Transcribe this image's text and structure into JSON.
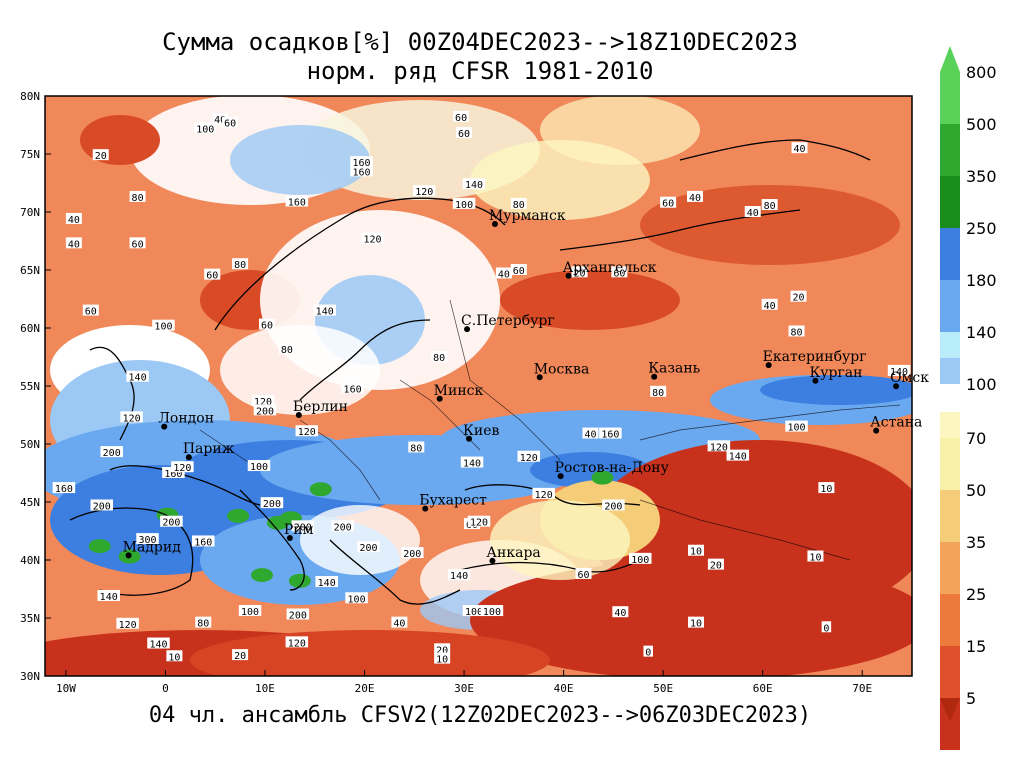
{
  "title_line1": "Сумма осадков[%] 00Z04DEC2023-->18Z10DEC2023",
  "title_line2": "норм. ряд CFSR 1981-2010",
  "footer": "04 чл. ансамбль CFSV2(12Z02DEC2023-->06Z03DEC2023)",
  "lat_labels": [
    "80N",
    "75N",
    "70N",
    "65N",
    "60N",
    "55N",
    "50N",
    "45N",
    "40N",
    "35N",
    "30N"
  ],
  "lon_labels": [
    "10W",
    "0",
    "10E",
    "20E",
    "30E",
    "40E",
    "50E",
    "60E",
    "70E"
  ],
  "colorbar": {
    "upper": [
      {
        "label": "800",
        "color": "#5ad25a"
      },
      {
        "label": "500",
        "color": "#2ea82e"
      },
      {
        "label": "350",
        "color": "#1a8c1a"
      },
      {
        "label": "250",
        "color": "#3c7fe0"
      },
      {
        "label": "180",
        "color": "#6aa8f0"
      },
      {
        "label": "140",
        "color": "#9cc8f5"
      }
    ],
    "upper_bottom_color": "#b8ecf8",
    "mid_label": "100",
    "lower": [
      {
        "label": "70",
        "color": "#f7f0a8"
      },
      {
        "label": "50",
        "color": "#f5cc78"
      },
      {
        "label": "35",
        "color": "#f2a45a"
      },
      {
        "label": "25",
        "color": "#ec7a3c"
      },
      {
        "label": "15",
        "color": "#e0502a"
      },
      {
        "label": "5",
        "color": "#c8321c"
      }
    ],
    "lower_top_color": "#fdf6c0",
    "bottom_arrow_color": "#b02810"
  },
  "cities": [
    {
      "name": "Мурманск",
      "lon": 33.1,
      "lat": 68.97
    },
    {
      "name": "Архангельск",
      "lon": 40.5,
      "lat": 64.5
    },
    {
      "name": "С.Петербург",
      "lon": 30.3,
      "lat": 59.9
    },
    {
      "name": "Москва",
      "lon": 37.6,
      "lat": 55.75
    },
    {
      "name": "Казань",
      "lon": 49.1,
      "lat": 55.8
    },
    {
      "name": "Екатеринбург",
      "lon": 60.6,
      "lat": 56.8
    },
    {
      "name": "Курган",
      "lon": 65.3,
      "lat": 55.45
    },
    {
      "name": "Омск",
      "lon": 73.4,
      "lat": 54.98
    },
    {
      "name": "Астана",
      "lon": 71.4,
      "lat": 51.15
    },
    {
      "name": "Минск",
      "lon": 27.55,
      "lat": 53.9
    },
    {
      "name": "Берлин",
      "lon": 13.4,
      "lat": 52.5
    },
    {
      "name": "Лондон",
      "lon": -0.12,
      "lat": 51.5
    },
    {
      "name": "Париж",
      "lon": 2.35,
      "lat": 48.86
    },
    {
      "name": "Киев",
      "lon": 30.5,
      "lat": 50.45
    },
    {
      "name": "Ростов-на-Дону",
      "lon": 39.7,
      "lat": 47.23
    },
    {
      "name": "Бухарест",
      "lon": 26.1,
      "lat": 44.43
    },
    {
      "name": "Рим",
      "lon": 12.5,
      "lat": 41.9
    },
    {
      "name": "Мадрид",
      "lon": -3.7,
      "lat": 40.4
    },
    {
      "name": "Анкара",
      "lon": 32.85,
      "lat": 39.93
    }
  ],
  "contour_labels": [
    {
      "t": "100",
      "lon": 4,
      "lat": 77.2
    },
    {
      "t": "40",
      "lon": 5.5,
      "lat": 78.0
    },
    {
      "t": "60",
      "lon": 6.5,
      "lat": 77.7
    },
    {
      "t": "20",
      "lon": -6.5,
      "lat": 74.9
    },
    {
      "t": "80",
      "lon": -2.8,
      "lat": 71.3
    },
    {
      "t": "40",
      "lon": -9.2,
      "lat": 69.4
    },
    {
      "t": "40",
      "lon": -9.2,
      "lat": 67.3
    },
    {
      "t": "60",
      "lon": -2.8,
      "lat": 67.3
    },
    {
      "t": "60",
      "lon": 4.7,
      "lat": 64.6
    },
    {
      "t": "80",
      "lon": 7.5,
      "lat": 65.5
    },
    {
      "t": "60",
      "lon": -7.5,
      "lat": 61.5
    },
    {
      "t": "100",
      "lon": -0.2,
      "lat": 60.2
    },
    {
      "t": "160",
      "lon": 13.2,
      "lat": 70.9
    },
    {
      "t": "160",
      "lon": 19.7,
      "lat": 73.5
    },
    {
      "t": "60",
      "lon": 29.7,
      "lat": 78.2
    },
    {
      "t": "60",
      "lon": 30.0,
      "lat": 76.8
    },
    {
      "t": "160",
      "lon": 19.7,
      "lat": 74.3
    },
    {
      "t": "120",
      "lon": 26,
      "lat": 71.8
    },
    {
      "t": "140",
      "lon": 31,
      "lat": 72.4
    },
    {
      "t": "100",
      "lon": 30,
      "lat": 70.7
    },
    {
      "t": "80",
      "lon": 35.5,
      "lat": 70.7
    },
    {
      "t": "120",
      "lon": 20.8,
      "lat": 67.7
    },
    {
      "t": "140",
      "lon": 16,
      "lat": 61.5
    },
    {
      "t": "60",
      "lon": 10.2,
      "lat": 60.3
    },
    {
      "t": "80",
      "lon": 12.2,
      "lat": 58.2
    },
    {
      "t": "40",
      "lon": 34,
      "lat": 64.7
    },
    {
      "t": "60",
      "lon": 35.5,
      "lat": 65.0
    },
    {
      "t": "60",
      "lon": 50.5,
      "lat": 70.8
    },
    {
      "t": "40",
      "lon": 53.2,
      "lat": 71.3
    },
    {
      "t": "40",
      "lon": 63.7,
      "lat": 75.5
    },
    {
      "t": "80",
      "lon": 60.7,
      "lat": 70.6
    },
    {
      "t": "40",
      "lon": 59,
      "lat": 70.0
    },
    {
      "t": "40",
      "lon": 60.7,
      "lat": 62.0
    },
    {
      "t": "20",
      "lon": 63.6,
      "lat": 62.7
    },
    {
      "t": "80",
      "lon": 63.4,
      "lat": 59.7
    },
    {
      "t": "60",
      "lon": 45.6,
      "lat": 64.8
    },
    {
      "t": "20",
      "lon": 41.6,
      "lat": 64.8
    },
    {
      "t": "80",
      "lon": 49.5,
      "lat": 54.5
    },
    {
      "t": "100",
      "lon": 63.4,
      "lat": 51.5
    },
    {
      "t": "140",
      "lon": 73.7,
      "lat": 56.3
    },
    {
      "t": "120",
      "lon": 55.6,
      "lat": 49.8
    },
    {
      "t": "140",
      "lon": 57.5,
      "lat": 49.0
    },
    {
      "t": "160",
      "lon": 44.7,
      "lat": 50.9
    },
    {
      "t": "40",
      "lon": 42.7,
      "lat": 50.9
    },
    {
      "t": "120",
      "lon": 36.5,
      "lat": 48.9
    },
    {
      "t": "140",
      "lon": 30.8,
      "lat": 48.4
    },
    {
      "t": "80",
      "lon": 25.2,
      "lat": 49.7
    },
    {
      "t": "120",
      "lon": 38,
      "lat": 45.7
    },
    {
      "t": "200",
      "lon": 45,
      "lat": 44.7
    },
    {
      "t": "60",
      "lon": 30.8,
      "lat": 43.1
    },
    {
      "t": "100",
      "lon": 47.7,
      "lat": 40.1
    },
    {
      "t": "60",
      "lon": 42,
      "lat": 38.8
    },
    {
      "t": "10",
      "lon": 53.3,
      "lat": 40.8
    },
    {
      "t": "20",
      "lon": 55.3,
      "lat": 39.6
    },
    {
      "t": "10",
      "lon": 65.3,
      "lat": 40.3
    },
    {
      "t": "10",
      "lon": 53.3,
      "lat": 34.6
    },
    {
      "t": "0",
      "lon": 66.4,
      "lat": 34.2
    },
    {
      "t": "0",
      "lon": 48.5,
      "lat": 32.1
    },
    {
      "t": "10",
      "lon": 66.4,
      "lat": 46.2
    },
    {
      "t": "40",
      "lon": 45.7,
      "lat": 35.5
    },
    {
      "t": "160",
      "lon": -10.2,
      "lat": 46.2
    },
    {
      "t": "200",
      "lon": -6.4,
      "lat": 44.7
    },
    {
      "t": "200",
      "lon": -5.4,
      "lat": 49.3
    },
    {
      "t": "200",
      "lon": 0.6,
      "lat": 43.3
    },
    {
      "t": "160",
      "lon": 0.8,
      "lat": 47.5
    },
    {
      "t": "140",
      "lon": -2.8,
      "lat": 55.8
    },
    {
      "t": "120",
      "lon": -3.4,
      "lat": 52.3
    },
    {
      "t": "120",
      "lon": 1.7,
      "lat": 48.0
    },
    {
      "t": "100",
      "lon": 9.4,
      "lat": 48.1
    },
    {
      "t": "300",
      "lon": -1.8,
      "lat": 41.8
    },
    {
      "t": "160",
      "lon": 3.8,
      "lat": 41.6
    },
    {
      "t": "140",
      "lon": -5.7,
      "lat": 36.9
    },
    {
      "t": "120",
      "lon": -3.8,
      "lat": 34.5
    },
    {
      "t": "80",
      "lon": 3.8,
      "lat": 34.6
    },
    {
      "t": "140",
      "lon": -0.7,
      "lat": 32.8
    },
    {
      "t": "10",
      "lon": 0.9,
      "lat": 31.7
    },
    {
      "t": "20",
      "lon": 7.5,
      "lat": 31.8
    },
    {
      "t": "120",
      "lon": 13.2,
      "lat": 32.9
    },
    {
      "t": "200",
      "lon": 13.3,
      "lat": 35.3
    },
    {
      "t": "100",
      "lon": 8.5,
      "lat": 35.6
    },
    {
      "t": "100",
      "lon": 19.2,
      "lat": 36.7
    },
    {
      "t": "140",
      "lon": 16.2,
      "lat": 38.1
    },
    {
      "t": "200",
      "lon": 13.8,
      "lat": 42.9
    },
    {
      "t": "200",
      "lon": 17.8,
      "lat": 42.9
    },
    {
      "t": "200",
      "lon": 10.7,
      "lat": 44.9
    },
    {
      "t": "200",
      "lon": 20.4,
      "lat": 41.1
    },
    {
      "t": "200",
      "lon": 24.8,
      "lat": 40.6
    },
    {
      "t": "140",
      "lon": 29.5,
      "lat": 38.7
    },
    {
      "t": "100",
      "lon": 31,
      "lat": 35.6
    },
    {
      "t": "100",
      "lon": 32.8,
      "lat": 35.6
    },
    {
      "t": "20",
      "lon": 27.8,
      "lat": 32.3
    },
    {
      "t": "10",
      "lon": 27.8,
      "lat": 31.5
    },
    {
      "t": "40",
      "lon": 23.5,
      "lat": 34.6
    },
    {
      "t": "120",
      "lon": 31.5,
      "lat": 43.3
    },
    {
      "t": "120",
      "lon": 9.8,
      "lat": 53.7
    },
    {
      "t": "200",
      "lon": 10.0,
      "lat": 52.9
    },
    {
      "t": "120",
      "lon": 14.2,
      "lat": 51.1
    },
    {
      "t": "160",
      "lon": 18.8,
      "lat": 54.8
    },
    {
      "t": "80",
      "lon": 27.5,
      "lat": 57.5
    }
  ],
  "green_blobs": [
    {
      "lon": -6.6,
      "lat": 41.2
    },
    {
      "lon": -3.6,
      "lat": 40.3
    },
    {
      "lon": 0.2,
      "lat": 43.9
    },
    {
      "lon": 7.3,
      "lat": 43.8
    },
    {
      "lon": 11.3,
      "lat": 43.2
    },
    {
      "lon": 12.6,
      "lat": 43.6
    },
    {
      "lon": 15.6,
      "lat": 46.1
    },
    {
      "lon": 43.9,
      "lat": 47.1
    },
    {
      "lon": 9.7,
      "lat": 38.7
    },
    {
      "lon": 13.5,
      "lat": 38.2
    }
  ]
}
